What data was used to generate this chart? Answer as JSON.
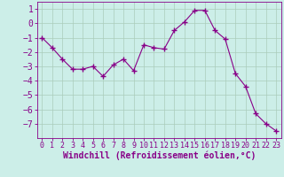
{
  "x": [
    0,
    1,
    2,
    3,
    4,
    5,
    6,
    7,
    8,
    9,
    10,
    11,
    12,
    13,
    14,
    15,
    16,
    17,
    18,
    19,
    20,
    21,
    22,
    23
  ],
  "y": [
    -1.0,
    -1.7,
    -2.5,
    -3.2,
    -3.2,
    -3.0,
    -3.7,
    -2.9,
    -2.5,
    -3.3,
    -1.5,
    -1.7,
    -1.8,
    -0.5,
    0.1,
    0.9,
    0.9,
    -0.5,
    -1.1,
    -3.5,
    -4.4,
    -6.3,
    -7.0,
    -7.5
  ],
  "line_color": "#880088",
  "marker": "+",
  "marker_size": 4,
  "marker_lw": 1.0,
  "line_width": 0.8,
  "bg_color": "#cceee8",
  "grid_color": "#aaccbb",
  "xlabel": "Windchill (Refroidissement éolien,°C)",
  "xlabel_fontsize": 7,
  "tick_fontsize": 6,
  "ylim": [
    -8,
    1.5
  ],
  "yticks": [
    1,
    0,
    -1,
    -2,
    -3,
    -4,
    -5,
    -6,
    -7
  ],
  "xticks": [
    0,
    1,
    2,
    3,
    4,
    5,
    6,
    7,
    8,
    9,
    10,
    11,
    12,
    13,
    14,
    15,
    16,
    17,
    18,
    19,
    20,
    21,
    22,
    23
  ]
}
